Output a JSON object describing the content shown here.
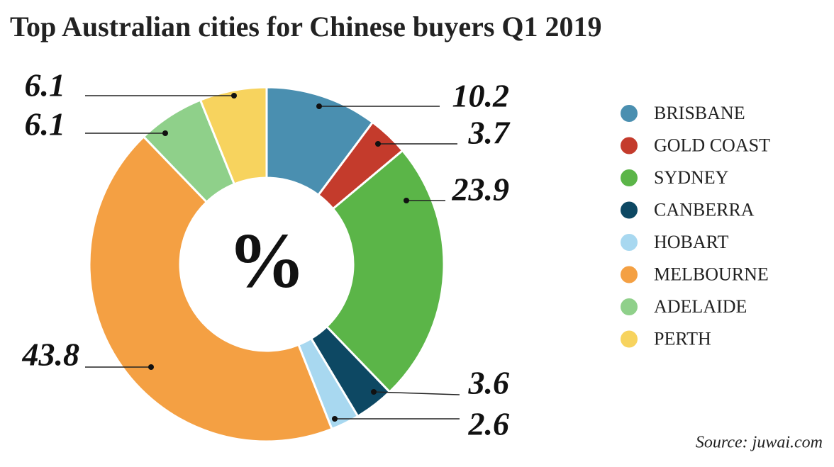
{
  "chart_data": {
    "type": "donut",
    "title": "Top Australian cities for Chinese buyers Q1 2019",
    "center_label": "%",
    "categories": [
      "BRISBANE",
      "GOLD COAST",
      "SYDNEY",
      "CANBERRA",
      "HOBART",
      "MELBOURNE",
      "ADELAIDE",
      "PERTH"
    ],
    "values": [
      10.2,
      3.7,
      23.9,
      3.6,
      2.6,
      43.8,
      6.1,
      6.1
    ],
    "colors": [
      "#4a8fb0",
      "#c43b2c",
      "#5bb548",
      "#0d4863",
      "#a8d8f0",
      "#f4a043",
      "#8fd08a",
      "#f7d35e"
    ],
    "legend": "right",
    "source": "Source: juwai.com"
  }
}
